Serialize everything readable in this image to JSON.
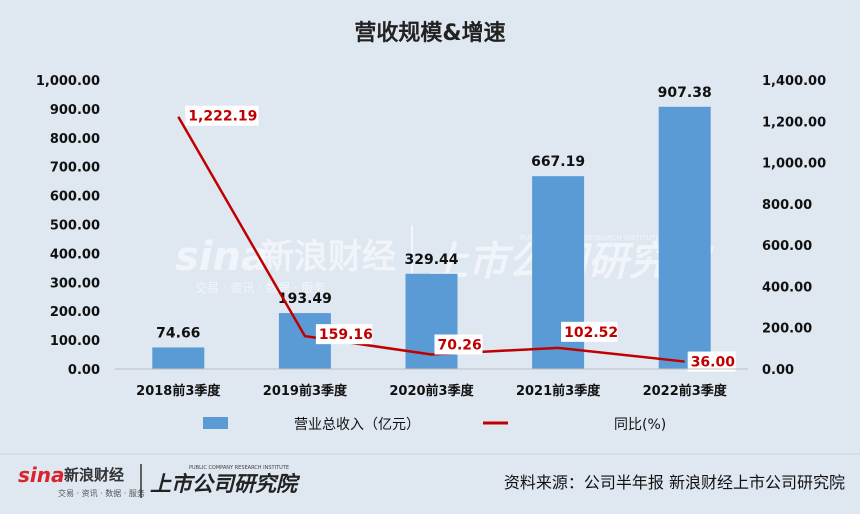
{
  "chart_data": {
    "type": "bar+line",
    "title": "营收规模&增速",
    "categories": [
      "2018前3季度",
      "2019前3季度",
      "2020前3季度",
      "2021前3季度",
      "2022前3季度"
    ],
    "series": [
      {
        "name": "营业总收入（亿元）",
        "type": "bar",
        "axis": "left",
        "color": "#5b9bd5",
        "values": [
          74.66,
          193.49,
          329.44,
          667.19,
          907.38
        ],
        "labels": [
          "74.66",
          "193.49",
          "329.44",
          "667.19",
          "907.38"
        ]
      },
      {
        "name": "同比(%)",
        "type": "line",
        "axis": "right",
        "color": "#c00000",
        "values": [
          1222.19,
          159.16,
          70.26,
          102.52,
          36.0
        ],
        "labels": [
          "1,222.19",
          "159.16",
          "70.26",
          "102.52",
          "36.00"
        ]
      }
    ],
    "y_left": {
      "lim": [
        0,
        1000
      ],
      "ticks": [
        "0.00",
        "100.00",
        "200.00",
        "300.00",
        "400.00",
        "500.00",
        "600.00",
        "700.00",
        "800.00",
        "900.00",
        "1,000.00"
      ]
    },
    "y_right": {
      "lim": [
        0,
        1400
      ],
      "ticks": [
        "0.00",
        "200.00",
        "400.00",
        "600.00",
        "800.00",
        "1,000.00",
        "1,200.00",
        "1,400.00"
      ]
    },
    "grid": false,
    "legend_position": "bottom"
  },
  "footer": {
    "source": "资料来源：公司半年报 新浪财经上市公司研究院",
    "logo_sina": "sina",
    "logo_sina_cn": "新浪财经",
    "logo_sina_sub": "交易 · 资讯 · 数据 · 服务",
    "logo_research": "上市公司研究院",
    "logo_research_en": "PUBLIC COMPANY RESEARCH INSTITUTE"
  }
}
